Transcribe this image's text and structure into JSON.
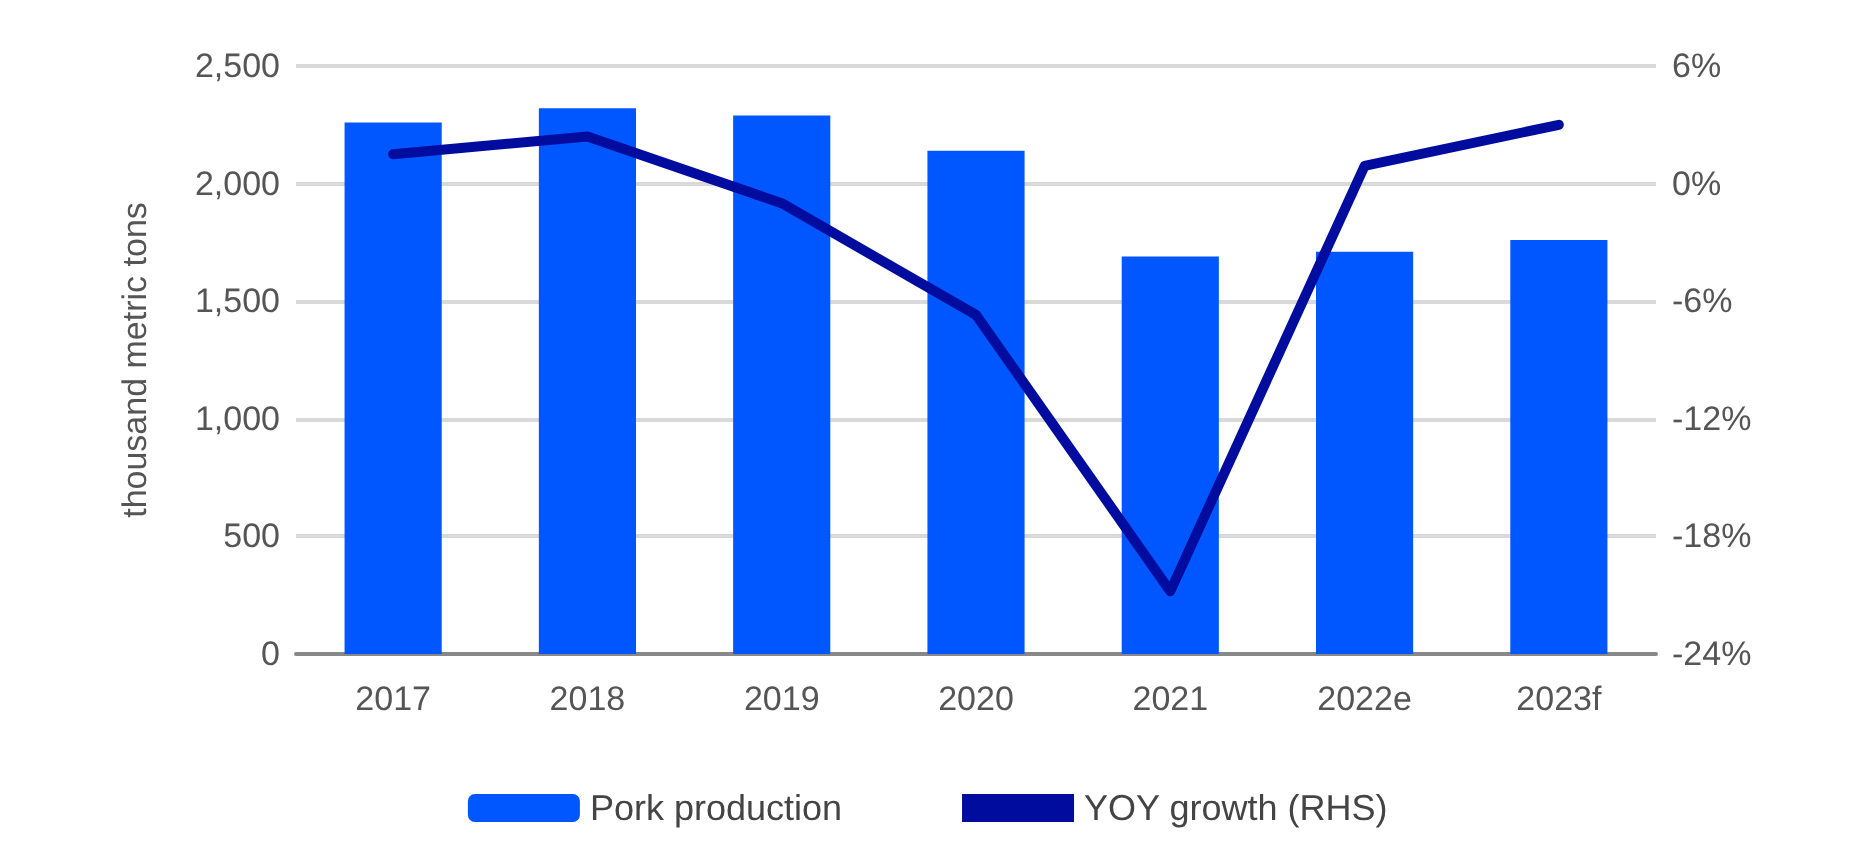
{
  "chart_data": {
    "type": "bar",
    "categories": [
      "2017",
      "2018",
      "2019",
      "2020",
      "2021",
      "2022e",
      "2023f"
    ],
    "ylabel": "thousand metric tons",
    "ylim": [
      0,
      2500
    ],
    "yticks": [
      {
        "value": 0,
        "label": "0"
      },
      {
        "value": 500,
        "label": "500"
      },
      {
        "value": 1000,
        "label": "1,000"
      },
      {
        "value": 1500,
        "label": "1,500"
      },
      {
        "value": 2000,
        "label": "2,000"
      },
      {
        "value": 2500,
        "label": "2,500"
      }
    ],
    "y2lim": [
      -24,
      6
    ],
    "y2ticks": [
      {
        "value": -24,
        "label": "-24%"
      },
      {
        "value": -18,
        "label": "-18%"
      },
      {
        "value": -12,
        "label": "-12%"
      },
      {
        "value": -6,
        "label": "-6%"
      },
      {
        "value": 0,
        "label": "0%"
      },
      {
        "value": 6,
        "label": "6%"
      }
    ],
    "series": [
      {
        "name": "Pork production",
        "color": "#0057ff",
        "values": [
          2260,
          2320,
          2290,
          2140,
          1690,
          1710,
          1760
        ]
      },
      {
        "name": "YOY growth (RHS)",
        "type": "line",
        "axis": "y2",
        "color": "#000c9e",
        "values": [
          1.5,
          2.4,
          -1.0,
          -6.7,
          -20.8,
          0.9,
          3.0
        ]
      }
    ],
    "grid": "y",
    "legend": "bottom"
  }
}
